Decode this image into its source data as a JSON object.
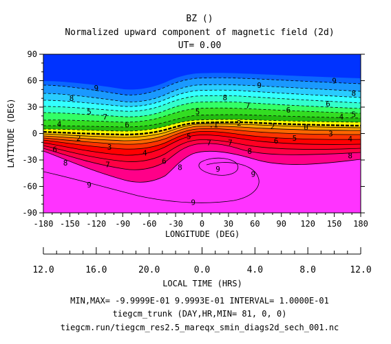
{
  "chart_data": {
    "type": "contour",
    "title": "BZ ()",
    "subtitle": "Normalized upward component of magnetic field (2d)",
    "ut_label": "UT= 0.00",
    "xlabel": "LONGITUDE (DEG)",
    "ylabel": "LATITUDE (DEG)",
    "xlim": [
      -180,
      180
    ],
    "ylim": [
      -90,
      90
    ],
    "x_ticks": [
      "-180",
      "-150",
      "-120",
      "-90",
      "-60",
      "-30",
      "0",
      "30",
      "60",
      "90",
      "120",
      "150",
      "180"
    ],
    "y_ticks": [
      "90",
      "60",
      "30",
      "0",
      "-30",
      "-60",
      "-90"
    ],
    "local_time_label": "LOCAL TIME (HRS)",
    "local_time_ticks": [
      "12.0",
      "16.0",
      "20.0",
      "0.0",
      "4.0",
      "8.0",
      "12.0"
    ],
    "contour_levels": [
      -0.9,
      -0.8,
      -0.7,
      -0.6,
      -0.5,
      -0.4,
      -0.3,
      -0.2,
      -0.1,
      0,
      0.1,
      0.2,
      0.3,
      0.4,
      0.5,
      0.6,
      0.7,
      0.8,
      0.9
    ],
    "colors": {
      "-1.0": "#0033ff",
      "-0.9": "#0a66ff",
      "-0.8": "#1a99ff",
      "-0.7": "#29ccff",
      "-0.6": "#33ffff",
      "-0.5": "#33ffcc",
      "-0.4": "#33ff66",
      "-0.3": "#33dd22",
      "-0.2": "#22bb11",
      "-0.1": "#ffff00",
      "0.1": "#ffcc00",
      "0.2": "#ffaa00",
      "0.3": "#ff6600",
      "0.4": "#ff3300",
      "0.5": "#ff0000",
      "0.6": "#ff0022",
      "0.7": "#ff0044",
      "0.8": "#ff0088",
      "0.9": "#ff33ff"
    },
    "contour_labels": [
      {
        "text": "9",
        "lon": -120,
        "lat": 52
      },
      {
        "text": "9",
        "lon": 65,
        "lat": 55
      },
      {
        "text": "9",
        "lon": 150,
        "lat": 60
      },
      {
        "text": "8",
        "lon": -148,
        "lat": 40
      },
      {
        "text": "8",
        "lon": 26,
        "lat": 41
      },
      {
        "text": "8",
        "lon": 172,
        "lat": 46
      },
      {
        "text": "7",
        "lon": -110,
        "lat": 19
      },
      {
        "text": "7",
        "lon": 52,
        "lat": 32
      },
      {
        "text": "6",
        "lon": -85,
        "lat": 10
      },
      {
        "text": "6",
        "lon": 98,
        "lat": 27
      },
      {
        "text": "6",
        "lon": 143,
        "lat": 34
      },
      {
        "text": "5",
        "lon": -128,
        "lat": 25
      },
      {
        "text": "5",
        "lon": -5,
        "lat": 25
      },
      {
        "text": "5",
        "lon": 172,
        "lat": 22
      },
      {
        "text": "4",
        "lon": -162,
        "lat": 11
      },
      {
        "text": "4",
        "lon": 158,
        "lat": 19
      },
      {
        "text": "2",
        "lon": -140,
        "lat": -5
      },
      {
        "text": "2",
        "lon": 42,
        "lat": 12
      },
      {
        "text": "2",
        "lon": 80,
        "lat": 8
      },
      {
        "text": ".1",
        "lon": 13,
        "lat": 10
      },
      {
        "text": "0",
        "lon": 118,
        "lat": 7
      },
      {
        "text": "3",
        "lon": -105,
        "lat": -15
      },
      {
        "text": "3",
        "lon": 146,
        "lat": 0
      },
      {
        "text": "4",
        "lon": 168,
        "lat": -6
      },
      {
        "text": "4",
        "lon": -65,
        "lat": -22
      },
      {
        "text": "5",
        "lon": -15,
        "lat": -3
      },
      {
        "text": "5",
        "lon": 105,
        "lat": -5
      },
      {
        "text": "6",
        "lon": -167,
        "lat": -18
      },
      {
        "text": "6",
        "lon": -43,
        "lat": -31
      },
      {
        "text": "6",
        "lon": 84,
        "lat": -8
      },
      {
        "text": "7",
        "lon": 8,
        "lat": -10
      },
      {
        "text": "7",
        "lon": 32,
        "lat": -10
      },
      {
        "text": "7",
        "lon": -107,
        "lat": -35
      },
      {
        "text": "8",
        "lon": -155,
        "lat": -33
      },
      {
        "text": "8",
        "lon": -25,
        "lat": -38
      },
      {
        "text": "8",
        "lon": 54,
        "lat": -20
      },
      {
        "text": "8",
        "lon": 168,
        "lat": -25
      },
      {
        "text": "9",
        "lon": 18,
        "lat": -40
      },
      {
        "text": "9",
        "lon": 58,
        "lat": -46
      },
      {
        "text": "9",
        "lon": -128,
        "lat": -58
      },
      {
        "text": "9",
        "lon": -10,
        "lat": -78
      }
    ]
  },
  "footer": {
    "minmax": "MIN,MAX= -9.9999E-01  9.9993E-01 INTERVAL=  1.0000E-01",
    "run": "tiegcm_trunk (DAY,HR,MIN= 81, 0, 0)",
    "file": "tiegcm.run/tiegcm_res2.5_mareqx_smin_diags2d_sech_001.nc"
  }
}
